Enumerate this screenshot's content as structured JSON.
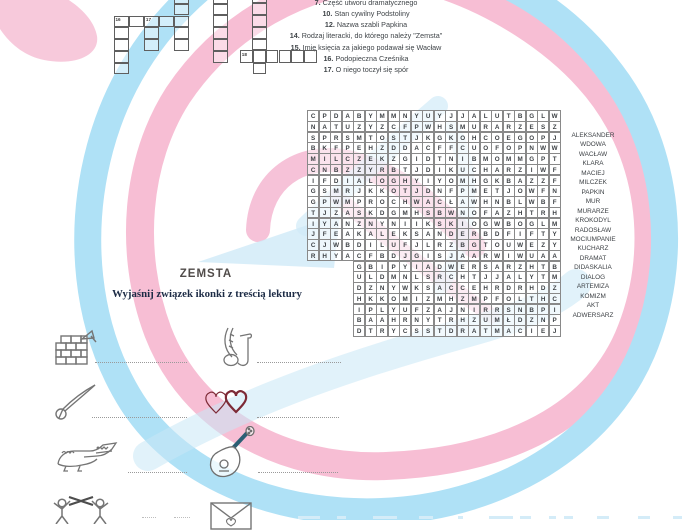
{
  "title": "ZEMSTA",
  "instruction": "Wyjaśnij związek ikonki z treścią lektury",
  "clues": [
    {
      "num": "7.",
      "text": "Część utworu dramatycznego"
    },
    {
      "num": "10.",
      "text": "Stan cywilny Podstoliny"
    },
    {
      "num": "12.",
      "text": "Nazwa szabli Papkina"
    },
    {
      "num": "14.",
      "text": "Rodzaj literacki, do którego należy \"Zemsta\""
    },
    {
      "num": "15.",
      "text": "Imię księcia za jakiego podawał się Wacław"
    },
    {
      "num": "16.",
      "text": "Podopieczna Cześnika"
    },
    {
      "num": "17.",
      "text": "O niego toczył się spór"
    }
  ],
  "crossword_labels": [
    "16",
    "17",
    "18"
  ],
  "wordsearch_rows": [
    "CPDABYMMNYUYJJALUTBGLW",
    "NATUZYZCFPWHSMURARZESZ",
    "SPRSMTOSTJKGKOHCOEGOPJ",
    "BKFPEHZDDACFFCUOFOPNWW",
    "MILCZEKZGIDTNIBMOMMGPT",
    "CNBZZYRBTJDIKUCHARZIWF",
    "IFDIALOGHYIYOMHGKBAZZF",
    "GSMRJKKOTJDNFPMETJOWFN",
    "GPWMPROCHWACŁAWHNBLWBF",
    "TJZASKDGMHSBWNOFAZHTRH",
    "IYANZNYNIIKSKIOGWBOGLM",
    "JFEAKALEKSANDERBDFIFTY",
    "CJWBDILUFJLRZBGTOUWEZY",
    "RHYACFBDJGISJAARWIWUAA",
    "    GBIPYIADWERSARZHTB",
    "    ULDMNLSRCHTJJALYTM",
    "    DZNYWKSACCEHRDRHDZ",
    "    HKKOMIZMHZMPFOLTHC",
    "    IPLYUFZAJNIRRSNBPI",
    "    BAAHRNYTRHZUMŁDZNP",
    "    DTRYCSSTDRATMACIEJ"
  ],
  "word_list": [
    "ALEKSANDER",
    "WDOWA",
    "WACŁAW",
    "KLARA",
    "MACIEJ",
    "MILCZEK",
    "PAPKIN",
    "MUR",
    "MURARZE",
    "KROKODYL",
    "RADOSŁAW",
    "MOCIUMPANIE",
    "KUCHARZ",
    "DRAMAT",
    "DIDASKALIA",
    "DIALOG",
    "ARTEMIZA",
    "KOMIZM",
    "AKT",
    "ADWERSARZ"
  ],
  "colors": {
    "ribbon_pink": "#f7bed4",
    "ribbon_blue": "#afe1f6",
    "logo_pink": "#f3aecb",
    "logo_blue": "#c9e7f6",
    "text_dark": "#3f4448",
    "navy": "#1c2b45",
    "heart_red": "#7d2a36",
    "mandolin_neck": "#2b5f74"
  }
}
